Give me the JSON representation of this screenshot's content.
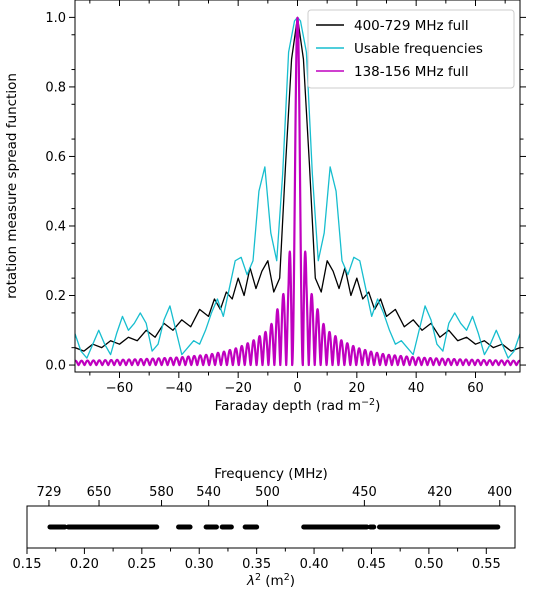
{
  "chart_data": [
    {
      "type": "line",
      "xlabel": "Faraday depth (rad m",
      "xlabel_sup": "−2",
      "xlabel_close": ")",
      "ylabel": "rotation measure spread function",
      "xlim": [
        -75,
        75
      ],
      "ylim": [
        -0.02,
        1.05
      ],
      "xticks": [
        -60,
        -40,
        -20,
        0,
        20,
        40,
        60
      ],
      "xtick_labels": [
        "−60",
        "−40",
        "−20",
        "0",
        "20",
        "40",
        "60"
      ],
      "yticks": [
        0.0,
        0.2,
        0.4,
        0.6,
        0.8,
        1.0
      ],
      "ytick_labels": [
        "0.0",
        "0.2",
        "0.4",
        "0.6",
        "0.8",
        "1.0"
      ],
      "grid": false,
      "legend_position": "top-right",
      "series": [
        {
          "name": "400-729 MHz full",
          "color": "#000000",
          "x": [
            -75,
            -72,
            -69,
            -66,
            -63,
            -60,
            -57,
            -54,
            -51,
            -48,
            -45,
            -42,
            -39,
            -36,
            -33,
            -30,
            -28,
            -26,
            -24,
            -22,
            -20,
            -18,
            -16,
            -14,
            -12,
            -10,
            -8,
            -6,
            -4,
            -2,
            0,
            2,
            4,
            6,
            8,
            10,
            12,
            14,
            16,
            18,
            20,
            22,
            24,
            26,
            28,
            30,
            33,
            36,
            39,
            42,
            45,
            48,
            51,
            54,
            57,
            60,
            63,
            66,
            69,
            72,
            75
          ],
          "y": [
            0.05,
            0.04,
            0.06,
            0.05,
            0.07,
            0.06,
            0.08,
            0.07,
            0.1,
            0.08,
            0.12,
            0.1,
            0.13,
            0.11,
            0.16,
            0.14,
            0.19,
            0.16,
            0.21,
            0.19,
            0.25,
            0.2,
            0.28,
            0.22,
            0.27,
            0.3,
            0.21,
            0.25,
            0.58,
            0.88,
            1.0,
            0.88,
            0.58,
            0.25,
            0.21,
            0.3,
            0.27,
            0.22,
            0.28,
            0.2,
            0.25,
            0.19,
            0.21,
            0.16,
            0.19,
            0.14,
            0.16,
            0.11,
            0.13,
            0.1,
            0.12,
            0.08,
            0.1,
            0.07,
            0.08,
            0.06,
            0.07,
            0.05,
            0.06,
            0.04,
            0.05
          ]
        },
        {
          "name": "Usable frequencies",
          "color": "#17becf",
          "x": [
            -75,
            -73,
            -71,
            -69,
            -67,
            -65,
            -63,
            -61,
            -59,
            -57,
            -55,
            -53,
            -51,
            -49,
            -47,
            -45,
            -43,
            -41,
            -39,
            -37,
            -35,
            -33,
            -31,
            -29,
            -27,
            -25,
            -23,
            -21,
            -19,
            -17,
            -15,
            -13,
            -11,
            -9,
            -7,
            -5,
            -3,
            -1,
            0,
            1,
            3,
            5,
            7,
            9,
            11,
            13,
            15,
            17,
            19,
            21,
            23,
            25,
            27,
            29,
            31,
            33,
            35,
            37,
            39,
            41,
            43,
            45,
            47,
            49,
            51,
            53,
            55,
            57,
            59,
            61,
            63,
            65,
            67,
            69,
            71,
            73,
            75
          ],
          "y": [
            0.09,
            0.04,
            0.02,
            0.06,
            0.1,
            0.06,
            0.03,
            0.09,
            0.14,
            0.1,
            0.12,
            0.15,
            0.12,
            0.04,
            0.06,
            0.13,
            0.17,
            0.1,
            0.03,
            0.05,
            0.07,
            0.06,
            0.1,
            0.15,
            0.19,
            0.14,
            0.22,
            0.3,
            0.31,
            0.26,
            0.3,
            0.5,
            0.57,
            0.38,
            0.3,
            0.55,
            0.9,
            0.99,
            1.0,
            0.99,
            0.9,
            0.55,
            0.3,
            0.38,
            0.57,
            0.5,
            0.3,
            0.26,
            0.31,
            0.3,
            0.22,
            0.14,
            0.19,
            0.15,
            0.1,
            0.06,
            0.07,
            0.05,
            0.03,
            0.1,
            0.17,
            0.13,
            0.06,
            0.04,
            0.12,
            0.15,
            0.12,
            0.1,
            0.14,
            0.09,
            0.03,
            0.06,
            0.1,
            0.06,
            0.02,
            0.04,
            0.09
          ]
        },
        {
          "name": "138-156 MHz full",
          "color": "#bf00bf",
          "width": 2.2,
          "sidelobe_envelope": {
            "x": [
              -75,
              -60,
              -50,
              -40,
              -30,
              -25,
              -20,
              -15,
              -10,
              -8,
              -6,
              -4,
              -3,
              0,
              3,
              4,
              6,
              8,
              10,
              15,
              20,
              25,
              30,
              40,
              50,
              60,
              75
            ],
            "y": [
              0.012,
              0.015,
              0.018,
              0.022,
              0.03,
              0.038,
              0.05,
              0.07,
              0.1,
              0.13,
              0.18,
              0.22,
              0.25,
              1.0,
              0.25,
              0.22,
              0.18,
              0.13,
              0.1,
              0.07,
              0.05,
              0.038,
              0.03,
              0.022,
              0.018,
              0.015,
              0.012
            ]
          },
          "main_lobe_half_width": 1.8,
          "sidelobe_period": 2.0
        }
      ]
    },
    {
      "type": "scatter",
      "xlabel": "λ",
      "xlabel_sup": "2",
      "xlabel_rest": " (m",
      "xlabel_sup2": "2",
      "xlabel_close": ")",
      "top_label": "Frequency (MHz)",
      "xlim": [
        0.15,
        0.575
      ],
      "xticks": [
        0.15,
        0.2,
        0.25,
        0.3,
        0.35,
        0.4,
        0.45,
        0.5,
        0.55
      ],
      "xtick_labels": [
        "0.15",
        "0.20",
        "0.25",
        "0.30",
        "0.35",
        "0.40",
        "0.45",
        "0.50",
        "0.55"
      ],
      "top_ticks_mhz": [
        729,
        650,
        580,
        540,
        500,
        450,
        420,
        400
      ],
      "top_tick_labels": [
        "729",
        "650",
        "580",
        "540",
        "500",
        "450",
        "420",
        "400"
      ],
      "marker_color": "#000000",
      "segments": [
        [
          0.17,
          0.183
        ],
        [
          0.186,
          0.263
        ],
        [
          0.282,
          0.292
        ],
        [
          0.306,
          0.315
        ],
        [
          0.32,
          0.328
        ],
        [
          0.34,
          0.35
        ],
        [
          0.391,
          0.446
        ],
        [
          0.449,
          0.452
        ],
        [
          0.457,
          0.56
        ]
      ]
    }
  ]
}
